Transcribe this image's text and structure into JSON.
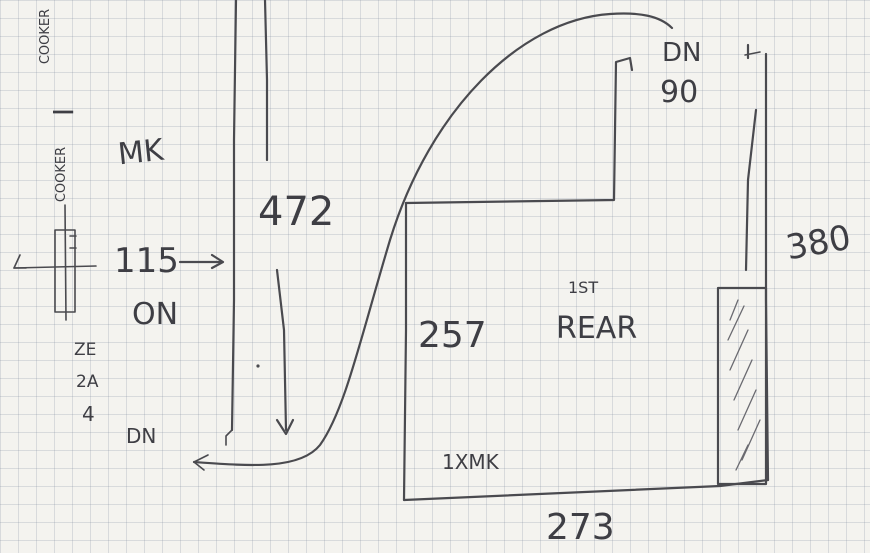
{
  "labels": {
    "label_472": "472",
    "label_115": "115",
    "label_on": "ON",
    "label_mk": "MK",
    "label_i": "I",
    "label_cooker_top": "COOKER",
    "label_cooker_mid": "COOKER",
    "label_ze": "ZE",
    "label_2a": "2A",
    "label_4": "4",
    "label_dn_bottom": "DN",
    "label_dn_top": "DN",
    "label_90": "90",
    "label_380": "380",
    "label_257": "257",
    "label_1st": "1ST",
    "label_rear": "REAR",
    "label_1xmk": "1XMK",
    "label_273": "273"
  },
  "colors": {
    "ink": "#4a4a4f",
    "paper": "#f4f3ef",
    "grid": "#8a90a0"
  }
}
